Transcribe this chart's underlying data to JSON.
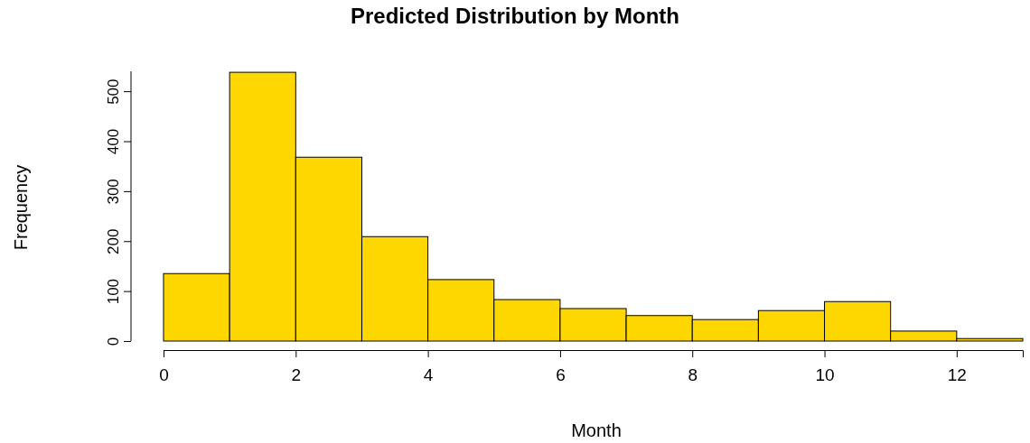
{
  "chart_data": {
    "type": "histogram",
    "title": "Predicted Distribution by Month",
    "xlabel": "Month",
    "ylabel": "Frequency",
    "bins": [
      0,
      1,
      2,
      3,
      4,
      5,
      6,
      7,
      8,
      9,
      10,
      11,
      12,
      13
    ],
    "values": [
      135,
      538,
      368,
      209,
      123,
      83,
      65,
      51,
      43,
      61,
      79,
      20,
      5
    ],
    "color": "#ffd700",
    "xlim": [
      0,
      13
    ],
    "xticks": [
      0,
      2,
      4,
      6,
      8,
      10,
      12
    ],
    "ylim": [
      0,
      540
    ],
    "yticks": [
      0,
      100,
      200,
      300,
      400,
      500
    ],
    "grid": false
  }
}
